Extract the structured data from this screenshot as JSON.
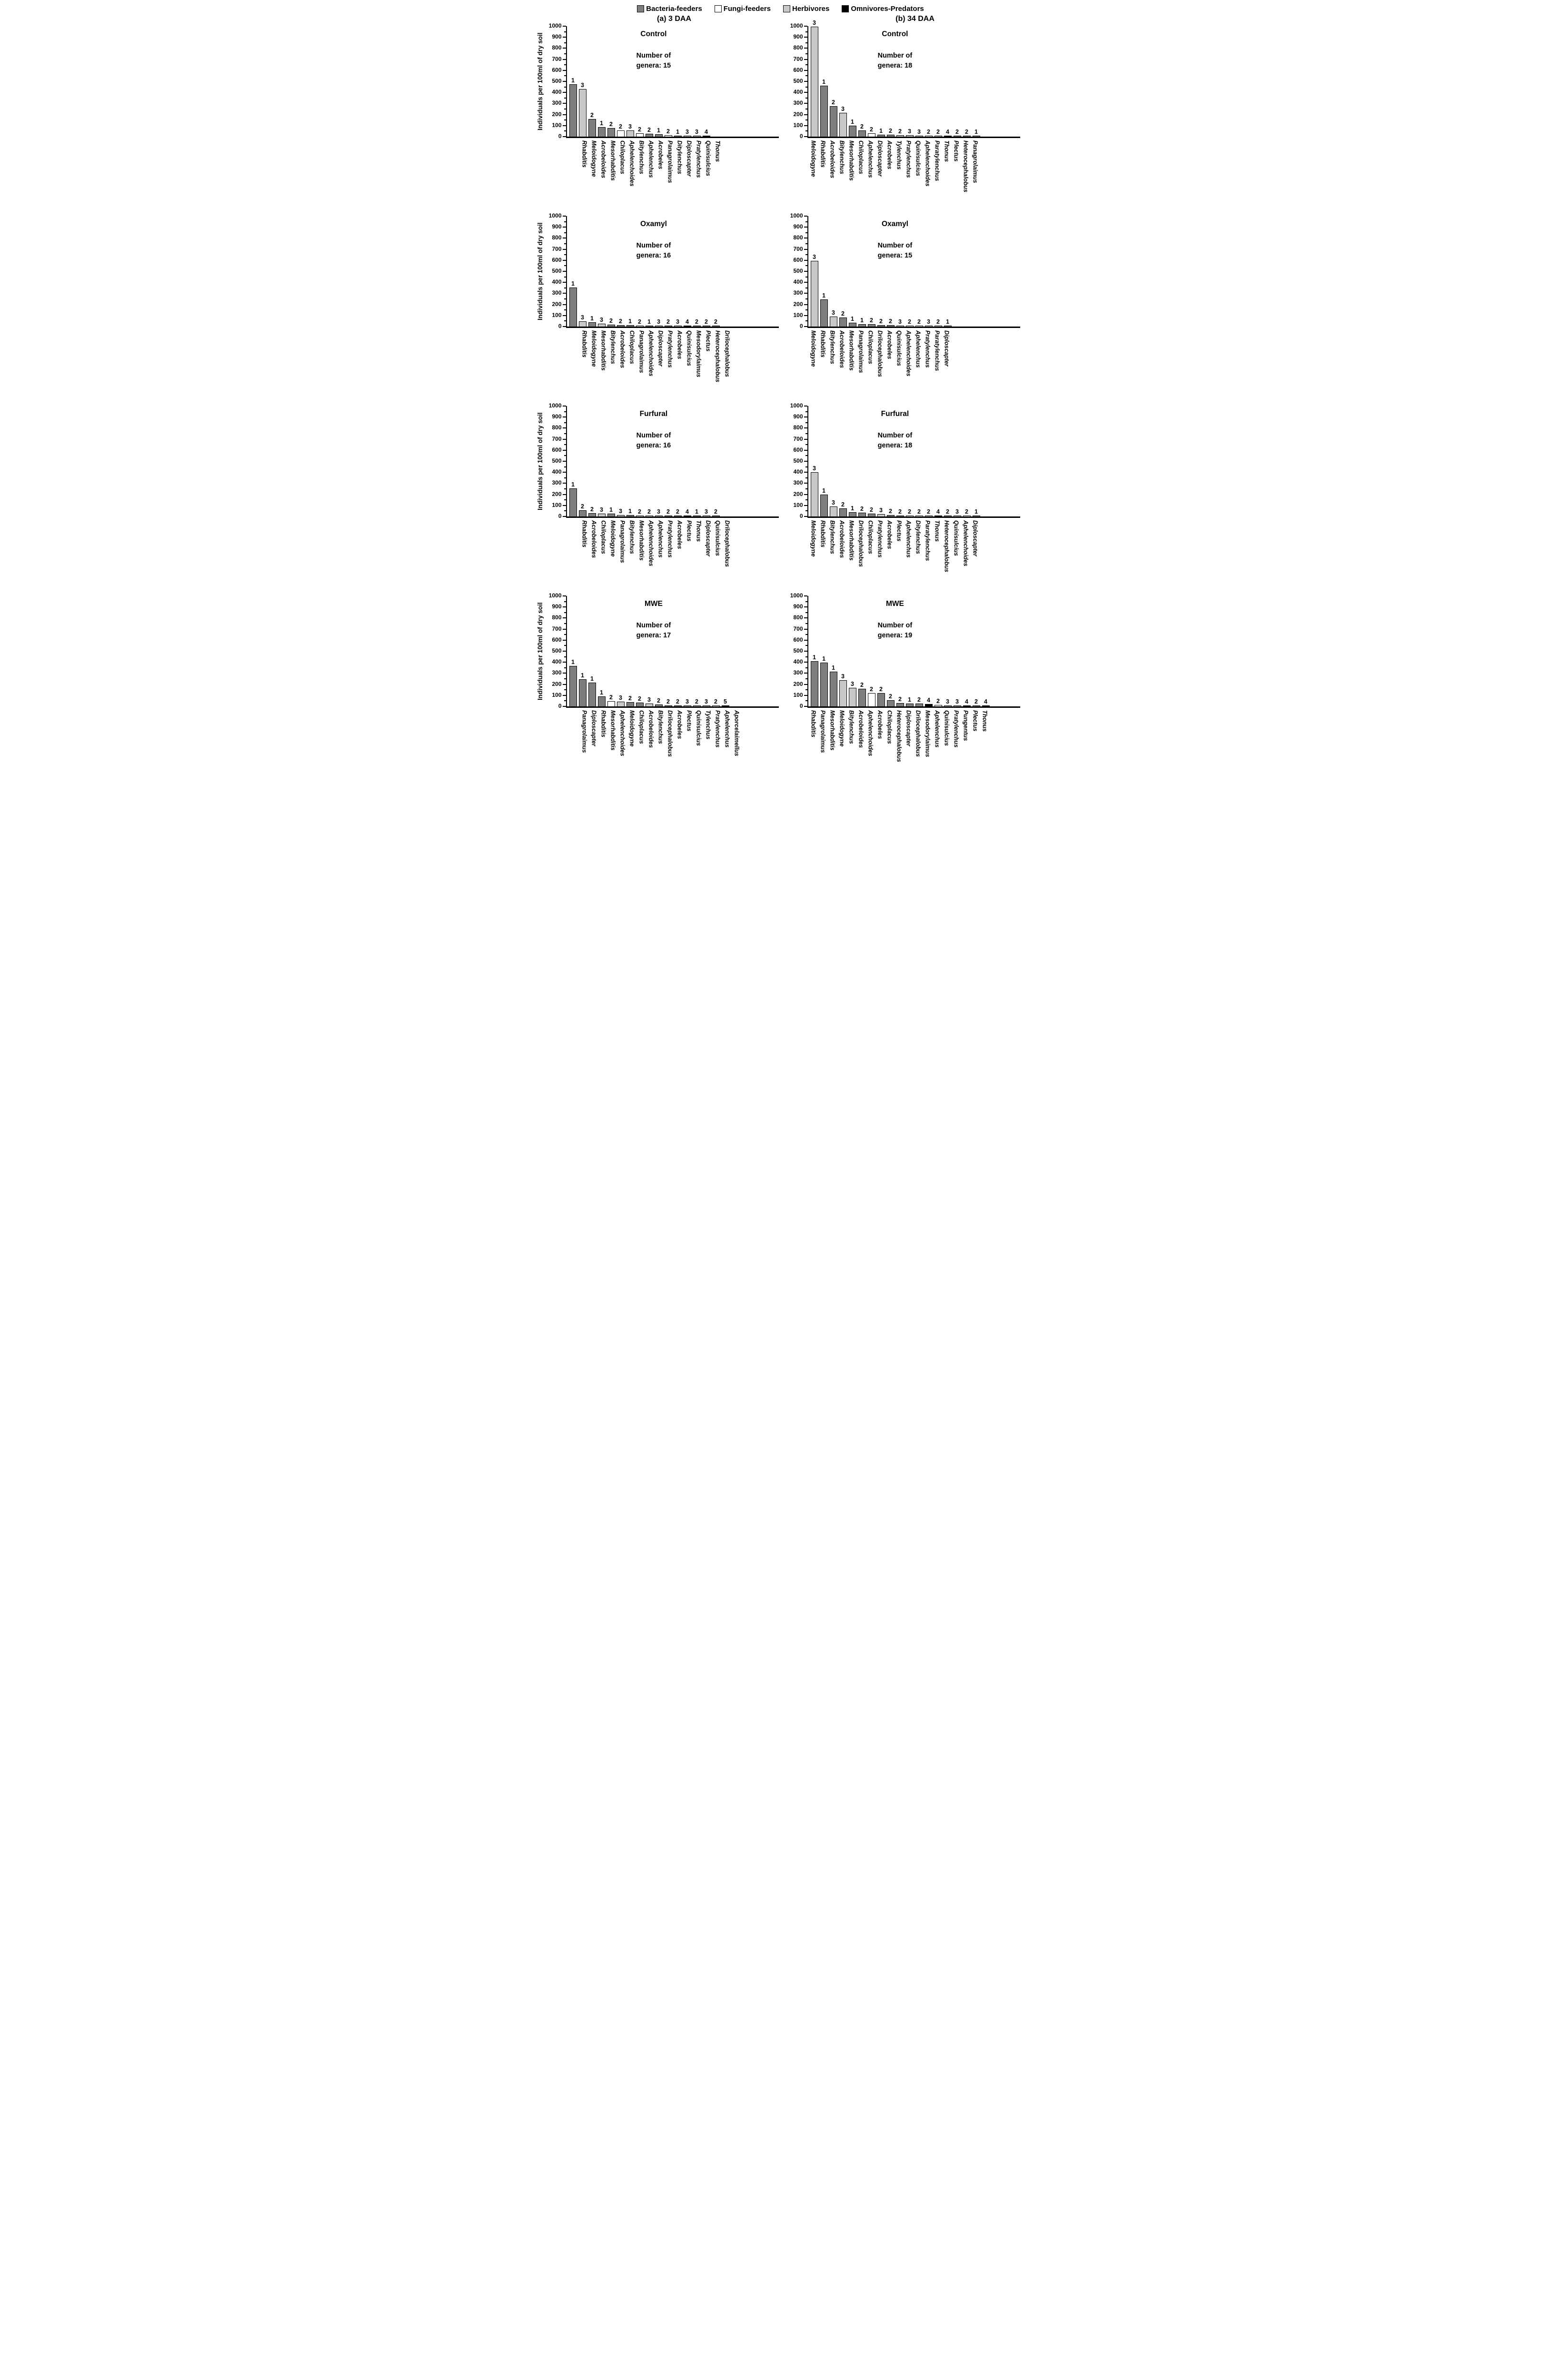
{
  "legend": {
    "items": [
      {
        "label": "Bacteria-feeders",
        "group": "bacteria"
      },
      {
        "label": "Fungi-feeders",
        "group": "fungi"
      },
      {
        "label": "Herbivores",
        "group": "herbivores"
      },
      {
        "label": "Omnivores-Predators",
        "group": "omnivores"
      }
    ]
  },
  "columns": [
    {
      "label": "(a) 3 DAA"
    },
    {
      "label": "(b) 34 DAA"
    }
  ],
  "y_axis": {
    "label": "Individuals per 100ml of dry soil",
    "min": 0,
    "max": 1000,
    "major_step": 100,
    "minor_step": 50
  },
  "colors": {
    "bacteria": "#7d7d7d",
    "fungi": "#ffffff",
    "herbivores": "#c8c8c8",
    "omnivores": "#000000",
    "axis": "#000000"
  },
  "chart_data": [
    {
      "type": "bar",
      "column": "(a) 3 DAA",
      "title": "Control",
      "annotation_line1": "Number of",
      "annotation_line2": "genera: 15",
      "n_genera": 15,
      "ylim": [
        0,
        1000
      ],
      "categories": [
        "Rhabditis",
        "Meloidogyne",
        "Acrobeloides",
        "Mesorhabditis",
        "Chiloplacus",
        "Aphelenchoides",
        "Bitylenchus",
        "Aphelenchus",
        "Acrobeles",
        "Panagrolaimus",
        "Ditylenchus",
        "Diploscapter",
        "Pratylenchus",
        "Quinisulcius",
        "Thonus"
      ],
      "values": [
        475,
        430,
        160,
        85,
        78,
        55,
        55,
        30,
        28,
        22,
        15,
        10,
        8,
        6,
        5
      ],
      "cp_labels": [
        1,
        3,
        2,
        1,
        2,
        2,
        3,
        2,
        2,
        1,
        2,
        1,
        3,
        3,
        4
      ],
      "groups": [
        "bacteria",
        "herbivores",
        "bacteria",
        "bacteria",
        "bacteria",
        "fungi",
        "herbivores",
        "fungi",
        "bacteria",
        "bacteria",
        "fungi",
        "bacteria",
        "herbivores",
        "herbivores",
        "omnivores"
      ]
    },
    {
      "type": "bar",
      "column": "(b) 34 DAA",
      "title": "Control",
      "annotation_line1": "Number of",
      "annotation_line2": "genera: 18",
      "n_genera": 18,
      "ylim": [
        0,
        1000
      ],
      "categories": [
        "Meloidogyne",
        "Rhabditis",
        "Acrobeloides",
        "Bitylenchus",
        "Mesorhabditis",
        "Chiloplacus",
        "Aphelenchus",
        "Diploscapter",
        "Acrobeles",
        "Tylenchus",
        "Pratylenchus",
        "Quinisulcius",
        "Aphelenchoides",
        "Paratylenchus",
        "Thonus",
        "Plectus",
        "Heterocephalobus",
        "Panagrolaimus"
      ],
      "values": [
        995,
        460,
        275,
        215,
        100,
        55,
        30,
        18,
        18,
        12,
        12,
        10,
        10,
        8,
        6,
        5,
        4,
        3
      ],
      "cp_labels": [
        3,
        1,
        2,
        3,
        1,
        2,
        2,
        1,
        2,
        2,
        3,
        3,
        2,
        2,
        4,
        2,
        2,
        1
      ],
      "groups": [
        "herbivores",
        "bacteria",
        "bacteria",
        "herbivores",
        "bacteria",
        "bacteria",
        "fungi",
        "bacteria",
        "bacteria",
        "herbivores",
        "herbivores",
        "herbivores",
        "fungi",
        "herbivores",
        "omnivores",
        "bacteria",
        "bacteria",
        "bacteria"
      ]
    },
    {
      "type": "bar",
      "column": "(a) 3 DAA",
      "title": "Oxamyl",
      "annotation_line1": "Number of",
      "annotation_line2": "genera: 16",
      "n_genera": 16,
      "ylim": [
        0,
        1000
      ],
      "categories": [
        "Rhabditis",
        "Meloidogyne",
        "Mesorhabditis",
        "Bitylenchus",
        "Acrobeloides",
        "Chiloplacus",
        "Panagrolaimus",
        "Aphelenchoides",
        "Diploscapter",
        "Pratylenchus",
        "Acrobeles",
        "Quinisulcius",
        "Mesodorylaimus",
        "Plectus",
        "Heterocephalobus",
        "Drilocephalobus"
      ],
      "values": [
        355,
        48,
        40,
        25,
        18,
        15,
        12,
        8,
        5,
        4,
        3,
        3,
        2,
        2,
        2,
        2
      ],
      "cp_labels": [
        1,
        3,
        1,
        3,
        2,
        2,
        1,
        2,
        1,
        3,
        2,
        3,
        4,
        2,
        2,
        2
      ],
      "groups": [
        "bacteria",
        "herbivores",
        "bacteria",
        "herbivores",
        "bacteria",
        "bacteria",
        "bacteria",
        "fungi",
        "bacteria",
        "herbivores",
        "bacteria",
        "herbivores",
        "omnivores",
        "bacteria",
        "bacteria",
        "bacteria"
      ]
    },
    {
      "type": "bar",
      "column": "(b) 34 DAA",
      "title": "Oxamyl",
      "annotation_line1": "Number of",
      "annotation_line2": "genera: 15",
      "n_genera": 15,
      "ylim": [
        0,
        1000
      ],
      "categories": [
        "Meloidogyne",
        "Rhabditis",
        "Bitylenchus",
        "Acrobeloides",
        "Mesorhabditis",
        "Panagrolaimus",
        "Chiloplacus",
        "Drilocephalobus",
        "Acrobeles",
        "Quinisulcius",
        "Aphelenchoides",
        "Aphelenchus",
        "Pratylenchus",
        "Paratylenchus",
        "Diploscapter"
      ],
      "values": [
        595,
        245,
        90,
        80,
        35,
        22,
        20,
        14,
        12,
        7,
        6,
        5,
        4,
        3,
        2
      ],
      "cp_labels": [
        3,
        1,
        3,
        2,
        1,
        1,
        2,
        2,
        2,
        3,
        2,
        2,
        3,
        2,
        1
      ],
      "groups": [
        "herbivores",
        "bacteria",
        "herbivores",
        "bacteria",
        "bacteria",
        "bacteria",
        "bacteria",
        "bacteria",
        "bacteria",
        "herbivores",
        "fungi",
        "fungi",
        "herbivores",
        "herbivores",
        "bacteria"
      ]
    },
    {
      "type": "bar",
      "column": "(a) 3 DAA",
      "title": "Furfural",
      "annotation_line1": "Number of",
      "annotation_line2": "genera: 16",
      "n_genera": 16,
      "ylim": [
        0,
        1000
      ],
      "categories": [
        "Rhabditis",
        "Acrobeloides",
        "Chiloplacus",
        "Meloidogyne",
        "Panagrolaimus",
        "Bitylenchus",
        "Mesorhabditis",
        "Aphelenchoides",
        "Aphelenchus",
        "Pratylenchus",
        "Acrobeles",
        "Plectus",
        "Thonus",
        "Diploscapter",
        "Quinisulcius",
        "Drilocephalobus"
      ],
      "values": [
        255,
        55,
        30,
        28,
        25,
        15,
        12,
        8,
        7,
        5,
        4,
        3,
        2,
        2,
        2,
        2
      ],
      "cp_labels": [
        1,
        2,
        2,
        3,
        1,
        3,
        1,
        2,
        2,
        3,
        2,
        2,
        4,
        1,
        3,
        2
      ],
      "groups": [
        "bacteria",
        "bacteria",
        "bacteria",
        "herbivores",
        "bacteria",
        "herbivores",
        "bacteria",
        "fungi",
        "fungi",
        "herbivores",
        "bacteria",
        "bacteria",
        "omnivores",
        "bacteria",
        "herbivores",
        "bacteria"
      ]
    },
    {
      "type": "bar",
      "column": "(b) 34 DAA",
      "title": "Furfural",
      "annotation_line1": "Number of",
      "annotation_line2": "genera: 18",
      "n_genera": 18,
      "ylim": [
        0,
        1000
      ],
      "categories": [
        "Meloidogyne",
        "Rhabditis",
        "Bitylenchus",
        "Acrobeloides",
        "Mesorhabditis",
        "Drilocephalobus",
        "Chiloplacus",
        "Pratylenchus",
        "Acrobeles",
        "Plectus",
        "Aphelenchus",
        "Ditylenchus",
        "Paratylenchus",
        "Thonus",
        "Heterocephalobus",
        "Quinisulcius",
        "Aphelenchoides",
        "Diploscapter"
      ],
      "values": [
        400,
        200,
        90,
        75,
        40,
        35,
        28,
        20,
        12,
        8,
        7,
        5,
        4,
        4,
        3,
        2,
        2,
        2
      ],
      "cp_labels": [
        3,
        1,
        3,
        2,
        1,
        2,
        2,
        3,
        2,
        2,
        2,
        2,
        2,
        4,
        2,
        3,
        2,
        1
      ],
      "groups": [
        "herbivores",
        "bacteria",
        "herbivores",
        "bacteria",
        "bacteria",
        "bacteria",
        "bacteria",
        "herbivores",
        "bacteria",
        "bacteria",
        "fungi",
        "fungi",
        "herbivores",
        "omnivores",
        "bacteria",
        "herbivores",
        "fungi",
        "bacteria"
      ]
    },
    {
      "type": "bar",
      "column": "(a) 3 DAA",
      "title": "MWE",
      "annotation_line1": "Number of",
      "annotation_line2": "genera: 17",
      "n_genera": 17,
      "ylim": [
        0,
        1000
      ],
      "categories": [
        "Panagrolaimus",
        "Diploscapter",
        "Rhabditis",
        "Mesorhabditis",
        "Aphelenchoides",
        "Meloidogyne",
        "Chiloplacus",
        "Acrobeloides",
        "Bitylenchus",
        "Drilocephalobus",
        "Acrobeles",
        "Plectus",
        "Quinisulcius",
        "Tylenchus",
        "Pratylenchus",
        "Aphelenchus",
        "Aporcelaimellus"
      ],
      "values": [
        365,
        245,
        215,
        90,
        48,
        42,
        38,
        35,
        25,
        18,
        8,
        6,
        5,
        3,
        3,
        2,
        2
      ],
      "cp_labels": [
        1,
        1,
        1,
        1,
        2,
        3,
        2,
        2,
        3,
        2,
        2,
        2,
        3,
        2,
        3,
        2,
        5
      ],
      "groups": [
        "bacteria",
        "bacteria",
        "bacteria",
        "bacteria",
        "fungi",
        "herbivores",
        "bacteria",
        "bacteria",
        "herbivores",
        "bacteria",
        "bacteria",
        "bacteria",
        "herbivores",
        "herbivores",
        "herbivores",
        "fungi",
        "omnivores"
      ]
    },
    {
      "type": "bar",
      "column": "(b) 34 DAA",
      "title": "MWE",
      "annotation_line1": "Number of",
      "annotation_line2": "genera: 19",
      "n_genera": 19,
      "ylim": [
        0,
        1000
      ],
      "categories": [
        "Rhabditis",
        "Panagrolaimus",
        "Mesorhabditis",
        "Meloidogyne",
        "Bitylenchus",
        "Acrobeloides",
        "Aphelenchoides",
        "Acrobeles",
        "Chiloplacus",
        "Heterocephalobus",
        "Diploscapter",
        "Drilocephalobus",
        "Mesodorylaimus",
        "Aphelenchus",
        "Quinisulcius",
        "Pratylenchus",
        "Pungentus",
        "Plectus",
        "Thonus"
      ],
      "values": [
        410,
        395,
        315,
        235,
        168,
        160,
        120,
        120,
        55,
        30,
        25,
        25,
        22,
        15,
        8,
        6,
        5,
        4,
        3
      ],
      "cp_labels": [
        1,
        1,
        1,
        3,
        3,
        2,
        2,
        2,
        2,
        2,
        1,
        2,
        4,
        2,
        3,
        3,
        4,
        2,
        4
      ],
      "groups": [
        "bacteria",
        "bacteria",
        "bacteria",
        "herbivores",
        "herbivores",
        "bacteria",
        "fungi",
        "bacteria",
        "bacteria",
        "bacteria",
        "bacteria",
        "bacteria",
        "omnivores",
        "fungi",
        "herbivores",
        "herbivores",
        "omnivores",
        "bacteria",
        "omnivores"
      ]
    }
  ]
}
